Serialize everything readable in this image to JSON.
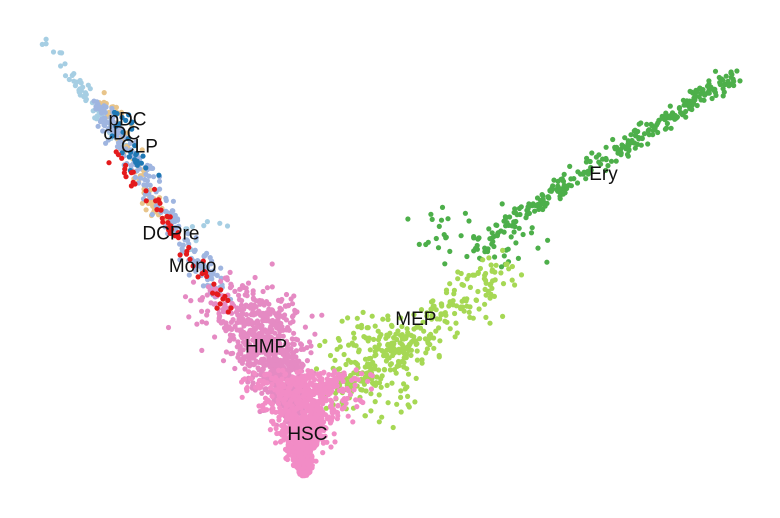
{
  "chart_data": {
    "type": "scatter",
    "title": "",
    "xlabel": "",
    "ylabel": "",
    "axes_visible": false,
    "grid": false,
    "legend": "none",
    "xlim": [
      0,
      100
    ],
    "ylim": [
      0,
      100
    ],
    "series": [
      {
        "name": "HSC",
        "color": "#f28cc6",
        "point_count": 900
      },
      {
        "name": "HMP",
        "color": "#e58ac3",
        "point_count": 800
      },
      {
        "name": "MEP",
        "color": "#a6d854",
        "point_count": 400
      },
      {
        "name": "Ery",
        "color": "#4daf4a",
        "point_count": 350
      },
      {
        "name": "Mono",
        "color": "#e41a1c",
        "point_count": 60
      },
      {
        "name": "DCPre",
        "color": "#9fb5e0",
        "point_count": 220
      },
      {
        "name": "CLP",
        "color": "#1f78b4",
        "point_count": 30
      },
      {
        "name": "cDC",
        "color": "#e8c48a",
        "point_count": 80
      },
      {
        "name": "pDC",
        "color": "#a6cee3",
        "point_count": 70
      }
    ],
    "labels": [
      {
        "text": "pDC",
        "x": 12.5,
        "y": 80.2
      },
      {
        "text": "cDC",
        "x": 11.7,
        "y": 77.2
      },
      {
        "text": "CLP",
        "x": 14.2,
        "y": 74.3
      },
      {
        "text": "DCPre",
        "x": 18.7,
        "y": 55.3
      },
      {
        "text": "Mono",
        "x": 21.8,
        "y": 48.3
      },
      {
        "text": "HMP",
        "x": 32.3,
        "y": 30.7
      },
      {
        "text": "MEP",
        "x": 53.7,
        "y": 36.7
      },
      {
        "text": "Ery",
        "x": 80.5,
        "y": 68.3
      },
      {
        "text": "HSC",
        "x": 38.2,
        "y": 11.6
      }
    ]
  }
}
